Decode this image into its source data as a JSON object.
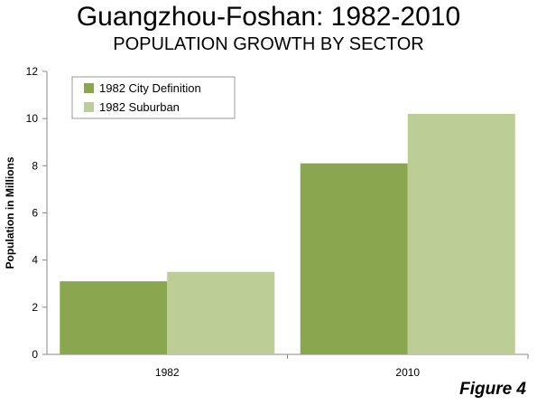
{
  "header": {
    "title": "Guangzhou-Foshan:  1982-2010",
    "subtitle": "POPULATION GROWTH BY SECTOR"
  },
  "footer": {
    "figure_label": "Figure 4"
  },
  "chart_data": {
    "type": "bar",
    "title": "Guangzhou-Foshan:  1982-2010",
    "subtitle": "POPULATION GROWTH BY SECTOR",
    "xlabel": "",
    "ylabel": "Population in Millions",
    "categories": [
      "1982",
      "2010"
    ],
    "series": [
      {
        "name": "1982 City Definition",
        "values": [
          3.1,
          8.1
        ],
        "color": "#8aa64e"
      },
      {
        "name": "1982 Suburban",
        "values": [
          3.5,
          10.2
        ],
        "color": "#bccd96"
      }
    ],
    "ylim": [
      0,
      12
    ],
    "yticks": [
      "0",
      "2",
      "4",
      "6",
      "8",
      "10",
      "12"
    ],
    "grid": false,
    "legend": "top-left"
  }
}
